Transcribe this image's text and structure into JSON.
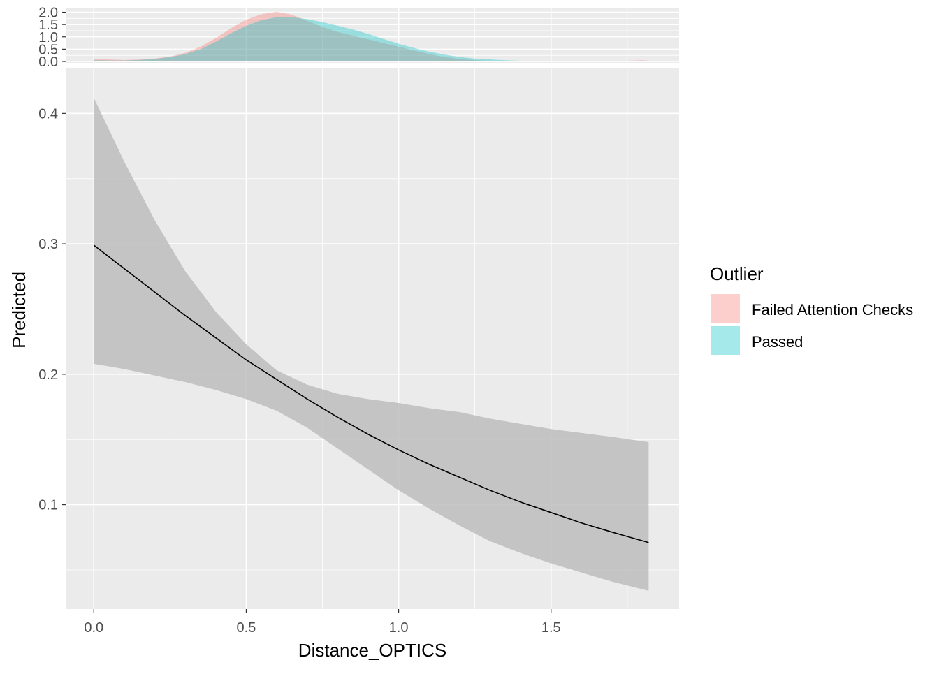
{
  "chart_data": [
    {
      "type": "line",
      "role": "main",
      "xlabel": "Distance_OPTICS",
      "ylabel": "Predicted",
      "xlim": [
        -0.09,
        1.92
      ],
      "ylim": [
        0.02,
        0.435
      ],
      "x_ticks": [
        0.0,
        0.5,
        1.0,
        1.5
      ],
      "x_tick_labels": [
        "0.0",
        "0.5",
        "1.0",
        "1.5"
      ],
      "y_ticks": [
        0.1,
        0.2,
        0.3,
        0.4
      ],
      "y_tick_labels": [
        "0.1",
        "0.2",
        "0.3",
        "0.4"
      ],
      "grid": true,
      "series": [
        {
          "x": [
            0.0,
            0.1,
            0.2,
            0.3,
            0.4,
            0.5,
            0.6,
            0.7,
            0.8,
            0.9,
            1.0,
            1.1,
            1.2,
            1.3,
            1.4,
            1.5,
            1.6,
            1.7,
            1.82
          ],
          "values": [
            0.299,
            0.281,
            0.263,
            0.245,
            0.228,
            0.211,
            0.196,
            0.181,
            0.167,
            0.154,
            0.142,
            0.131,
            0.121,
            0.111,
            0.102,
            0.094,
            0.086,
            0.079,
            0.071
          ],
          "lower": [
            0.208,
            0.204,
            0.199,
            0.194,
            0.188,
            0.181,
            0.172,
            0.159,
            0.143,
            0.127,
            0.111,
            0.097,
            0.084,
            0.072,
            0.063,
            0.055,
            0.048,
            0.041,
            0.034
          ],
          "upper": [
            0.412,
            0.363,
            0.318,
            0.279,
            0.248,
            0.223,
            0.203,
            0.192,
            0.185,
            0.181,
            0.178,
            0.174,
            0.171,
            0.166,
            0.162,
            0.158,
            0.155,
            0.152,
            0.148
          ]
        }
      ],
      "line_color": "#000000",
      "ribbon_color": "#bdbdbd",
      "panel_color": "#ebebeb",
      "grid_color": "#ffffff"
    },
    {
      "type": "area",
      "role": "marginal-density",
      "xlim": [
        -0.09,
        1.92
      ],
      "ylim": [
        0.0,
        2.1
      ],
      "y_ticks": [
        0.0,
        0.5,
        1.0,
        1.5,
        2.0
      ],
      "y_tick_labels": [
        "0.0",
        "0.5",
        "1.0",
        "1.5",
        "2.0"
      ],
      "x": [
        0.0,
        0.05,
        0.1,
        0.15,
        0.2,
        0.25,
        0.3,
        0.35,
        0.4,
        0.45,
        0.5,
        0.55,
        0.6,
        0.65,
        0.7,
        0.75,
        0.8,
        0.85,
        0.9,
        0.95,
        1.0,
        1.05,
        1.1,
        1.15,
        1.2,
        1.25,
        1.3,
        1.35,
        1.4,
        1.45,
        1.5,
        1.55,
        1.6,
        1.65,
        1.7,
        1.75,
        1.8,
        1.82
      ],
      "series": [
        {
          "name": "Failed Attention Checks",
          "color": "#f8766d",
          "values": [
            0.1,
            0.08,
            0.06,
            0.08,
            0.12,
            0.2,
            0.35,
            0.6,
            0.95,
            1.35,
            1.7,
            1.92,
            2.02,
            1.9,
            1.65,
            1.4,
            1.2,
            1.05,
            0.9,
            0.75,
            0.6,
            0.45,
            0.3,
            0.18,
            0.1,
            0.05,
            0.02,
            0.01,
            0.0,
            0.0,
            0.0,
            0.0,
            0.0,
            0.0,
            0.0,
            0.03,
            0.05,
            0.03
          ]
        },
        {
          "name": "Passed",
          "color": "#00bfc4",
          "values": [
            0.05,
            0.04,
            0.04,
            0.06,
            0.1,
            0.18,
            0.3,
            0.5,
            0.8,
            1.15,
            1.45,
            1.68,
            1.8,
            1.8,
            1.72,
            1.6,
            1.45,
            1.3,
            1.12,
            0.92,
            0.72,
            0.55,
            0.4,
            0.28,
            0.18,
            0.12,
            0.08,
            0.05,
            0.03,
            0.02,
            0.01,
            0.0,
            0.0,
            0.0,
            0.0,
            0.0,
            0.0,
            0.0
          ]
        }
      ]
    }
  ],
  "legend": {
    "title": "Outlier",
    "placement": "right",
    "items": [
      {
        "label": "Failed Attention Checks",
        "color": "#f8766d"
      },
      {
        "label": "Passed",
        "color": "#00bfc4"
      }
    ]
  }
}
